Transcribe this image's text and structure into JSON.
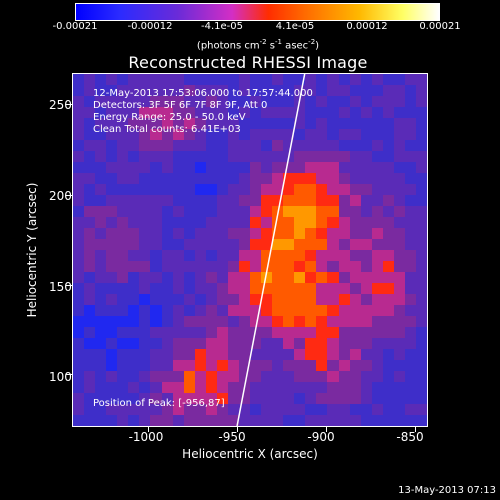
{
  "colorbar": {
    "ticks": [
      "-0.00021",
      "-0.00012",
      "-4.1e-05",
      "4.1e-05",
      "0.00012",
      "0.00021"
    ],
    "unit": "(photons cm",
    "unit_exp1": "-2",
    "unit_mid": " s",
    "unit_exp2": "-1",
    "unit_end": " asec",
    "unit_exp3": "-2",
    "unit_close": ")"
  },
  "chart_data": {
    "type": "heatmap",
    "title": "Reconstructed RHESSI Image",
    "xlabel": "Heliocentric X (arcsec)",
    "ylabel": "Heliocentric Y (arcsec)",
    "x_ticks": [
      "-1000",
      "-950",
      "-900",
      "-850"
    ],
    "y_ticks": [
      "100",
      "150",
      "200",
      "250"
    ],
    "xlim": [
      -1035,
      -835
    ],
    "ylim": [
      70,
      270
    ],
    "colormap": "rhessi-blue-purple-red-yellow",
    "annotations": [
      "12-May-2013 17:53:06.000 to 17:57:44.000",
      "Detectors: 3F 5F 6F 7F 8F 9F, Att 0",
      "Energy Range: 25.0 - 50.0 keV",
      "Clean    Total counts: 6.41E+03",
      "Position of Peak: [-956,87]"
    ]
  },
  "footer": {
    "timestamp": "13-May-2013 07:13"
  },
  "colors": {
    "background": "#000000",
    "foreground": "#ffffff",
    "limb_line": "#ffffff"
  }
}
